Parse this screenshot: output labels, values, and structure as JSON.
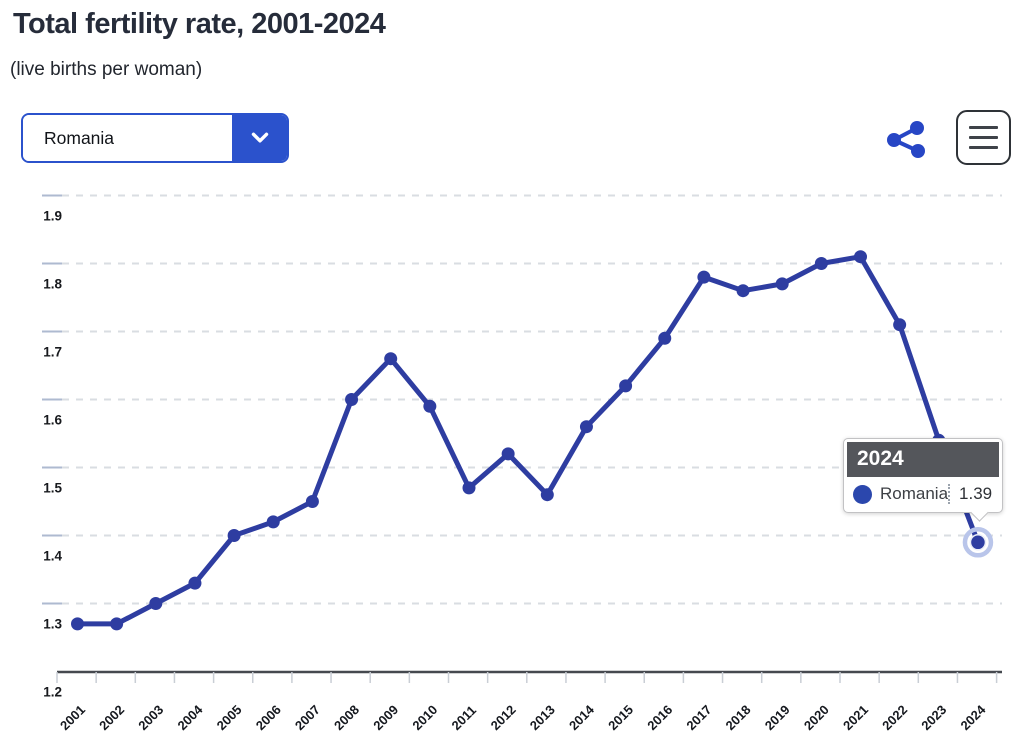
{
  "header": {
    "title": "Total fertility rate, 2001-2024",
    "subtitle": "(live births per woman)"
  },
  "controls": {
    "country_dropdown": {
      "value": "Romania"
    },
    "share_button": {
      "icon": "share-icon"
    },
    "menu_button": {
      "icon": "hamburger-menu-icon"
    }
  },
  "tooltip": {
    "title": "2024",
    "series": "Romania",
    "value": "1.39"
  },
  "colors": {
    "accent_blue": "#2b52cc",
    "line_blue": "#2e3da1",
    "tooltip_header_bg": "#54565b",
    "title_text": "#262c3a",
    "halo_ring": "#b9c5ea"
  },
  "chart_data": {
    "type": "line",
    "title": "Total fertility rate, 2001-2024",
    "ylabel": "live births per woman",
    "x": [
      2001,
      2002,
      2003,
      2004,
      2005,
      2006,
      2007,
      2008,
      2009,
      2010,
      2011,
      2012,
      2013,
      2014,
      2015,
      2016,
      2017,
      2018,
      2019,
      2020,
      2021,
      2022,
      2023,
      2024
    ],
    "series": [
      {
        "name": "Romania",
        "values": [
          1.27,
          1.27,
          1.3,
          1.33,
          1.4,
          1.42,
          1.45,
          1.6,
          1.66,
          1.59,
          1.47,
          1.52,
          1.46,
          1.56,
          1.62,
          1.69,
          1.78,
          1.76,
          1.77,
          1.8,
          1.81,
          1.71,
          1.54,
          1.39
        ]
      }
    ],
    "ylim": [
      1.2,
      1.95
    ],
    "y_ticks": [
      "1.2",
      "1.3",
      "1.4",
      "1.5",
      "1.6",
      "1.7",
      "1.8",
      "1.9"
    ],
    "grid": "horizontal-dashed",
    "legend_position": "none",
    "line_color": "#2e3da1",
    "highlight": {
      "x": 2024,
      "value": 1.39,
      "note": "hovered point with tooltip; 2023 point hidden behind tooltip"
    }
  }
}
